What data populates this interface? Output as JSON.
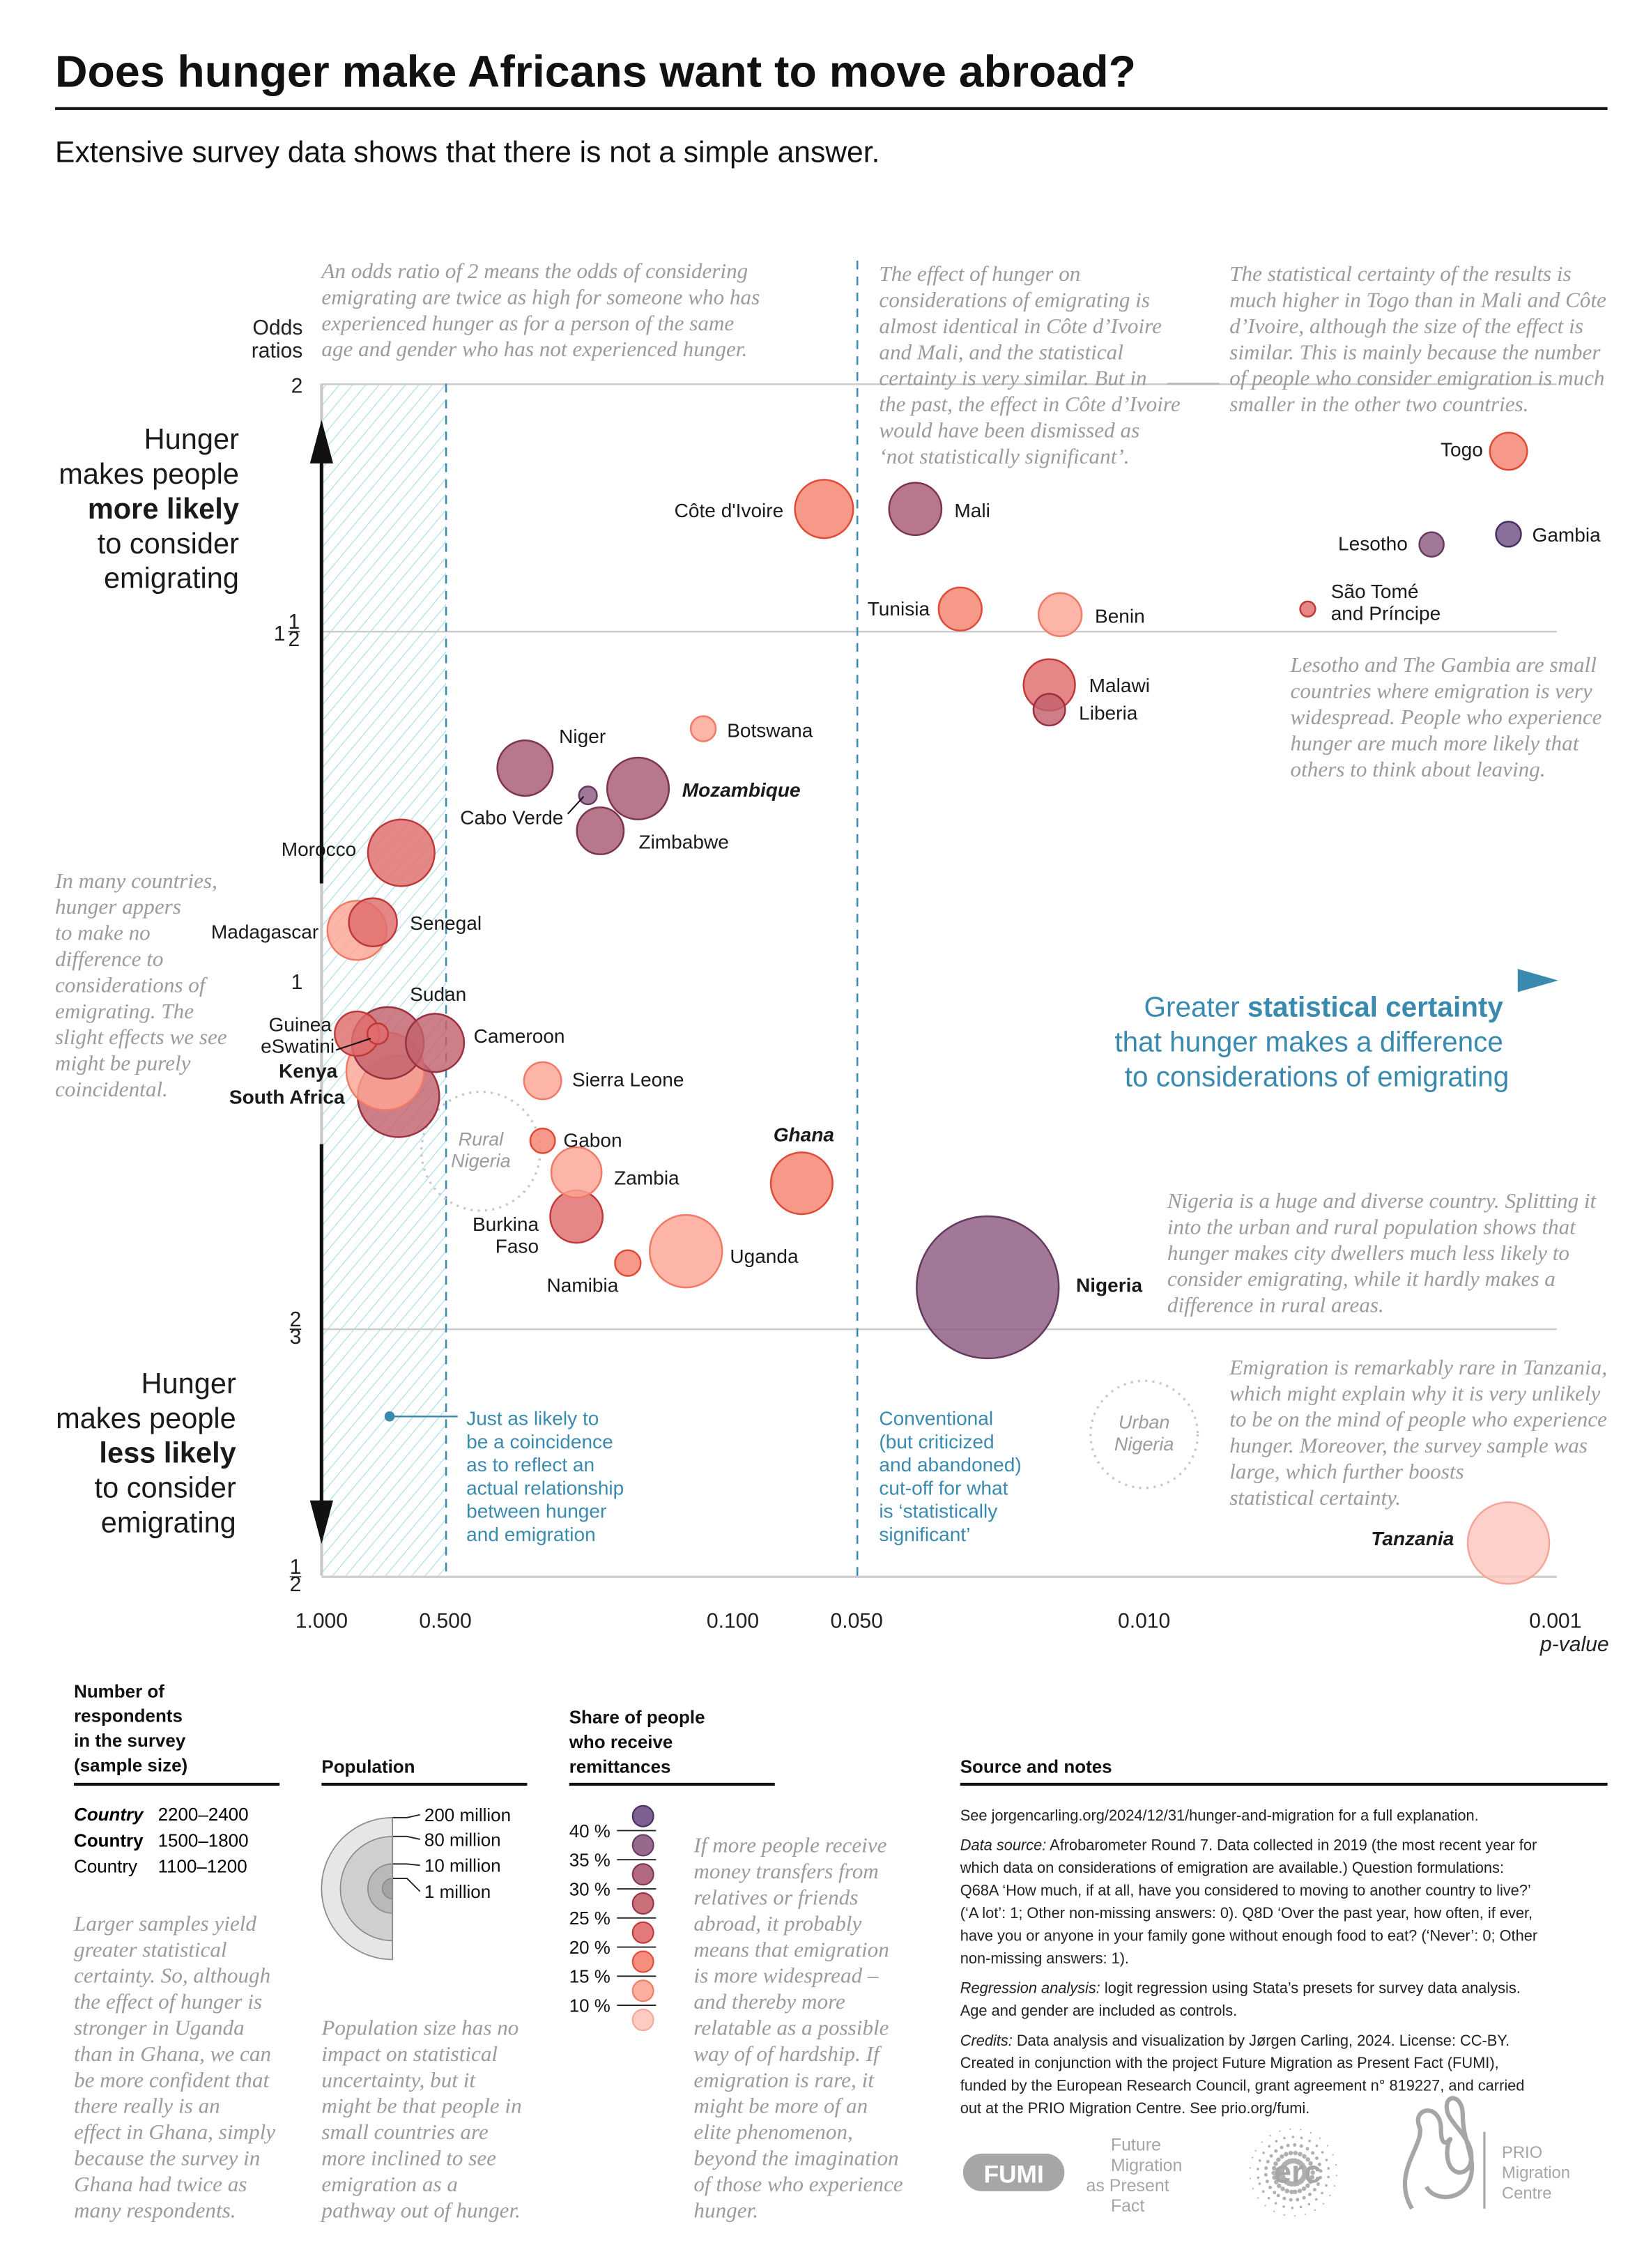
{
  "title": "Does hunger make Africans want to move abroad?",
  "subtitle": "Extensive survey data shows that there is not a simple answer.",
  "colors": {
    "accent_blue": "#3a8ab0",
    "hatch": "#a8dde8",
    "note_gray": "#9b9b9b"
  },
  "axis": {
    "y_title": [
      "Odds",
      "ratios"
    ],
    "x_title": "p-value",
    "y_ticks": [
      {
        "value": 2,
        "whole": "2",
        "num": "",
        "den": ""
      },
      {
        "value": 1.5,
        "whole": "1",
        "num": "1",
        "den": "2"
      },
      {
        "value": 1,
        "whole": "1",
        "num": "",
        "den": ""
      },
      {
        "value": 0.6667,
        "whole": "",
        "num": "2",
        "den": "3"
      },
      {
        "value": 0.5,
        "whole": "",
        "num": "1",
        "den": "2"
      }
    ],
    "x_ticks": [
      {
        "value": 1.0,
        "label": "1.000",
        "highlight": false
      },
      {
        "value": 0.5,
        "label": "0.500",
        "highlight": true
      },
      {
        "value": 0.1,
        "label": "0.100",
        "highlight": false
      },
      {
        "value": 0.05,
        "label": "0.050",
        "highlight": true
      },
      {
        "value": 0.01,
        "label": "0.010",
        "highlight": false
      },
      {
        "value": 0.001,
        "label": "0.001",
        "highlight": false
      }
    ]
  },
  "side_labels": {
    "top": [
      "Hunger",
      "makes people",
      "more likely",
      "to consider",
      "emigrating"
    ],
    "bottom": [
      "Hunger",
      "makes people",
      "less likely",
      "to consider",
      "emigrating"
    ]
  },
  "certainty_label": {
    "line1_pre": "Greater ",
    "line1_bold": "statistical certainty",
    "line2": "that hunger makes a difference",
    "line3": "to considerations of emigrating"
  },
  "annotations": {
    "odds_ratio": [
      "An odds ratio of 2 means the odds of considering",
      "emigrating are twice as high for someone who has",
      "experienced hunger as for a person of the same",
      "age and gender who has not experienced hunger."
    ],
    "cote_mali": [
      "The effect of hunger on",
      "considerations of emigrating is",
      "almost identical in Côte d’Ivoire",
      "and Mali, and the statistical",
      "certainty is very similar. But in",
      "the past, the effect in Côte d’Ivoire",
      "would have been dismissed as",
      "‘not statistically significant’."
    ],
    "togo": [
      "The statistical certainty of the results is",
      "much higher in Togo than in Mali and Côte",
      "d’Ivoire, although the size of the effect is",
      "similar. This is mainly because the number",
      "of people who consider emigration is much",
      "smaller in the other two countries."
    ],
    "lesotho_gambia": [
      "Lesotho and The Gambia are small",
      "countries where emigration is very",
      "widespread. People who experience",
      "hunger are much more likely that",
      "others to think about leaving."
    ],
    "no_difference": [
      "In many countries,",
      "hunger appers",
      "to make no",
      "difference to",
      "considerations of",
      "emigrating. The",
      "slight effects we see",
      "might be purely",
      "coincidental."
    ],
    "nigeria": [
      "Nigeria is a huge and diverse country. Splitting it",
      "into the urban and rural population shows that",
      "hunger makes city dwellers much less likely to",
      "consider emigrating, while it hardly makes a",
      "difference in rural areas."
    ],
    "tanzania": [
      "Emigration is remarkably rare in Tanzania,",
      "which might explain why it is very unlikely",
      "to be on the mind of people who experience",
      "hunger. Moreover, the survey sample was",
      "large, which further boosts",
      "statistical certainty."
    ],
    "coincidence": [
      "Just as likely to",
      "be a coincidence",
      "as to reflect an",
      "actual relationship",
      "between hunger",
      "and emigration"
    ],
    "conventional": [
      "Conventional",
      "(but criticized",
      "and abandoned)",
      "cut-off for what",
      "is ‘statistically",
      "significant’"
    ]
  },
  "subgroups": {
    "rural_nigeria": {
      "lines": [
        "Rural",
        "Nigeria"
      ],
      "p_value": 0.41,
      "odds_ratio": 0.82
    },
    "urban_nigeria": {
      "lines": [
        "Urban",
        "Nigeria"
      ],
      "p_value": 0.01,
      "odds_ratio": 0.59
    }
  },
  "chart_data": {
    "type": "scatter",
    "subtype": "bubble",
    "x": {
      "label": "p-value",
      "scale": "log",
      "reversed": true,
      "range": [
        1.0,
        0.001
      ]
    },
    "y": {
      "label": "Odds ratios",
      "scale": "log",
      "range": [
        0.5,
        2
      ]
    },
    "reference_lines": {
      "x": [
        0.5,
        0.05
      ],
      "y": [
        1
      ]
    },
    "size_encoding": "population (millions)",
    "color_encoding": "share of people who receive remittances (%)",
    "label_style_encoding": "sample size",
    "points": [
      {
        "country": "Togo",
        "p_value": 0.0013,
        "odds_ratio": 1.85,
        "population_millions": 8,
        "remittance_pct": 17,
        "sample": "1100-1200"
      },
      {
        "country": "Côte d'Ivoire",
        "p_value": 0.06,
        "odds_ratio": 1.73,
        "population_millions": 26,
        "remittance_pct": 17,
        "sample": "1100-1200"
      },
      {
        "country": "Mali",
        "p_value": 0.036,
        "odds_ratio": 1.73,
        "population_millions": 20,
        "remittance_pct": 32,
        "sample": "1100-1200"
      },
      {
        "country": "Lesotho",
        "p_value": 0.002,
        "odds_ratio": 1.66,
        "population_millions": 2.1,
        "remittance_pct": 37,
        "sample": "1100-1200"
      },
      {
        "country": "Gambia",
        "p_value": 0.0013,
        "odds_ratio": 1.68,
        "population_millions": 2.3,
        "remittance_pct": 42,
        "sample": "1100-1200"
      },
      {
        "country": "São Tomé and Príncipe",
        "p_value": 0.004,
        "odds_ratio": 1.54,
        "population_millions": 0.2,
        "remittance_pct": 22,
        "sample": "1100-1200"
      },
      {
        "country": "Tunisia",
        "p_value": 0.028,
        "odds_ratio": 1.54,
        "population_millions": 12,
        "remittance_pct": 17,
        "sample": "1100-1200"
      },
      {
        "country": "Benin",
        "p_value": 0.016,
        "odds_ratio": 1.53,
        "population_millions": 12,
        "remittance_pct": 12,
        "sample": "1100-1200"
      },
      {
        "country": "Malawi",
        "p_value": 0.017,
        "odds_ratio": 1.41,
        "population_millions": 19,
        "remittance_pct": 22,
        "sample": "1100-1200"
      },
      {
        "country": "Liberia",
        "p_value": 0.017,
        "odds_ratio": 1.37,
        "population_millions": 5,
        "remittance_pct": 27,
        "sample": "1100-1200"
      },
      {
        "country": "Botswana",
        "p_value": 0.118,
        "odds_ratio": 1.34,
        "population_millions": 2.3,
        "remittance_pct": 12,
        "sample": "1100-1200"
      },
      {
        "country": "Niger",
        "p_value": 0.32,
        "odds_ratio": 1.28,
        "population_millions": 23,
        "remittance_pct": 32,
        "sample": "1100-1200"
      },
      {
        "country": "Cabo Verde",
        "p_value": 0.225,
        "odds_ratio": 1.24,
        "population_millions": 0.55,
        "remittance_pct": 37,
        "sample": "1100-1200"
      },
      {
        "country": "Mozambique",
        "p_value": 0.17,
        "odds_ratio": 1.25,
        "population_millions": 30,
        "remittance_pct": 32,
        "sample": "2200-2400"
      },
      {
        "country": "Zimbabwe",
        "p_value": 0.21,
        "odds_ratio": 1.19,
        "population_millions": 15,
        "remittance_pct": 32,
        "sample": "1100-1200"
      },
      {
        "country": "Morocco",
        "p_value": 0.64,
        "odds_ratio": 1.16,
        "population_millions": 36,
        "remittance_pct": 22,
        "sample": "1100-1200"
      },
      {
        "country": "Madagascar",
        "p_value": 0.82,
        "odds_ratio": 1.06,
        "population_millions": 27,
        "remittance_pct": 12,
        "sample": "1100-1200"
      },
      {
        "country": "Senegal",
        "p_value": 0.75,
        "odds_ratio": 1.07,
        "population_millions": 16,
        "remittance_pct": 22,
        "sample": "1100-1200"
      },
      {
        "country": "Kenya",
        "p_value": 0.7,
        "odds_ratio": 0.9,
        "population_millions": 52,
        "remittance_pct": 12,
        "sample": "1500-1800"
      },
      {
        "country": "Guinea",
        "p_value": 0.82,
        "odds_ratio": 0.94,
        "population_millions": 13,
        "remittance_pct": 22,
        "sample": "1100-1200"
      },
      {
        "country": "Sudan",
        "p_value": 0.69,
        "odds_ratio": 0.93,
        "population_millions": 43,
        "remittance_pct": 27,
        "sample": "1100-1200"
      },
      {
        "country": "eSwatini",
        "p_value": 0.73,
        "odds_ratio": 0.94,
        "population_millions": 1.1,
        "remittance_pct": 22,
        "sample": "1100-1200"
      },
      {
        "country": "Cameroon",
        "p_value": 0.53,
        "odds_ratio": 0.93,
        "population_millions": 26,
        "remittance_pct": 27,
        "sample": "1100-1200"
      },
      {
        "country": "South Africa",
        "p_value": 0.65,
        "odds_ratio": 0.874,
        "population_millions": 58,
        "remittance_pct": 27,
        "sample": "1500-1800"
      },
      {
        "country": "Sierra Leone",
        "p_value": 0.29,
        "odds_ratio": 0.89,
        "population_millions": 8,
        "remittance_pct": 12,
        "sample": "1100-1200"
      },
      {
        "country": "Gabon",
        "p_value": 0.29,
        "odds_ratio": 0.83,
        "population_millions": 2.2,
        "remittance_pct": 17,
        "sample": "1100-1200"
      },
      {
        "country": "Zambia",
        "p_value": 0.24,
        "odds_ratio": 0.8,
        "population_millions": 18,
        "remittance_pct": 12,
        "sample": "1100-1200"
      },
      {
        "country": "Burkina Faso",
        "p_value": 0.24,
        "odds_ratio": 0.76,
        "population_millions": 20,
        "remittance_pct": 22,
        "sample": "1100-1200"
      },
      {
        "country": "Namibia",
        "p_value": 0.18,
        "odds_ratio": 0.72,
        "population_millions": 2.5,
        "remittance_pct": 17,
        "sample": "1100-1200"
      },
      {
        "country": "Uganda",
        "p_value": 0.13,
        "odds_ratio": 0.73,
        "population_millions": 44,
        "remittance_pct": 12,
        "sample": "1100-1200"
      },
      {
        "country": "Ghana",
        "p_value": 0.068,
        "odds_ratio": 0.79,
        "population_millions": 30,
        "remittance_pct": 17,
        "sample": "2200-2400"
      },
      {
        "country": "Nigeria",
        "p_value": 0.024,
        "odds_ratio": 0.7,
        "population_millions": 200,
        "remittance_pct": 37,
        "sample": "1500-1800"
      },
      {
        "country": "Tanzania",
        "p_value": 0.0013,
        "odds_ratio": 0.52,
        "population_millions": 58,
        "remittance_pct": 8,
        "sample": "2200-2400"
      }
    ]
  },
  "legend": {
    "sample": {
      "title": [
        "Number of",
        "respondents",
        "in the survey",
        "(sample size)"
      ],
      "rows": [
        {
          "label": "Country",
          "range": "2200–2400",
          "style": "bold-italic"
        },
        {
          "label": "Country",
          "range": "1500–1800",
          "style": "bold"
        },
        {
          "label": "Country",
          "range": "1100–1200",
          "style": "regular"
        }
      ],
      "note": [
        "Larger samples yield",
        "greater statistical",
        "certainty. So, although",
        "the effect of hunger is",
        "stronger in Uganda",
        "than in Ghana, we can",
        "be more confident that",
        "there really is an",
        "effect in Ghana, simply",
        "because the survey in",
        "Ghana had twice as",
        "many respondents."
      ]
    },
    "population": {
      "title": "Population",
      "items": [
        {
          "value": 200,
          "label": "200 million"
        },
        {
          "value": 80,
          "label": "80 million"
        },
        {
          "value": 10,
          "label": "10 million"
        },
        {
          "value": 1,
          "label": "1 million"
        }
      ],
      "note": [
        "Population size has no",
        "impact on statistical",
        "uncertainty, but it",
        "might be that people in",
        "small countries are",
        "more inclined to see",
        "emigration as a",
        "pathway out of hunger."
      ]
    },
    "remittances": {
      "title": [
        "Share of people",
        "who receive",
        "remittances"
      ],
      "ticks": [
        "40 %",
        "35 %",
        "30 %",
        "25 %",
        "20 %",
        "15 %",
        "10 %"
      ],
      "bins": [
        {
          "fill": "#6e4f86",
          "stroke": "#4a2e62"
        },
        {
          "fill": "#8c5a80",
          "stroke": "#663a5e"
        },
        {
          "fill": "#a85a72",
          "stroke": "#7d3450"
        },
        {
          "fill": "#c2616c",
          "stroke": "#9a3040"
        },
        {
          "fill": "#e06c6c",
          "stroke": "#c03838"
        },
        {
          "fill": "#f4826f",
          "stroke": "#e04a36"
        },
        {
          "fill": "#fca595",
          "stroke": "#f07a66"
        },
        {
          "fill": "#fcc6bd",
          "stroke": "#f5a597"
        }
      ],
      "note": [
        "If more people receive",
        "money transfers from",
        "relatives or friends",
        "abroad, it probably",
        "means that emigration",
        "is more widespread –",
        "and thereby more",
        "relatable as a possible",
        "way of of hardship. If",
        "emigration is rare, it",
        "might be more of an",
        "elite phenomenon,",
        "beyond the imagination",
        "of those who experience",
        "hunger."
      ]
    }
  },
  "source": {
    "title": "Source and notes",
    "paragraphs": [
      {
        "label": "",
        "lines": [
          "See jorgencarling.org/2024/12/31/hunger-and-migration for a full explanation."
        ]
      },
      {
        "label": "Data source:",
        "lines": [
          " Afrobarometer Round 7. Data collected in 2019 (the most recent year for",
          "which data on considerations of emigration are available.) Question formulations:",
          "Q68A ‘How much, if at all, have you considered to moving to another country to live?’",
          "(‘A lot’: 1; Other non-missing answers: 0). Q8D ‘Over the past year, how often, if ever,",
          "have you or anyone in your family gone without enough food to eat? (‘Never’: 0; Other",
          "non-missing answers: 1)."
        ]
      },
      {
        "label": "Regression analysis:",
        "lines": [
          " logit regression using Stata’s presets for survey data analysis.",
          "Age and gender are included as controls."
        ]
      },
      {
        "label": "Credits:",
        "lines": [
          " Data analysis and visualization by Jørgen Carling, 2024. License: CC-BY.",
          "Created in conjunction with the project Future Migration as Present Fact (FUMI),",
          "funded by the European Research Council, grant agreement n° 819227, and carried",
          "out at the PRIO Migration Centre. See prio.org/fumi."
        ]
      }
    ]
  },
  "logos": {
    "fumi": {
      "badge": "FUMI",
      "lines": [
        "Future",
        "Migration",
        "as Present",
        "Fact"
      ]
    },
    "erc": "erc",
    "prio": [
      "PRIO",
      "Migration",
      "Centre"
    ]
  }
}
